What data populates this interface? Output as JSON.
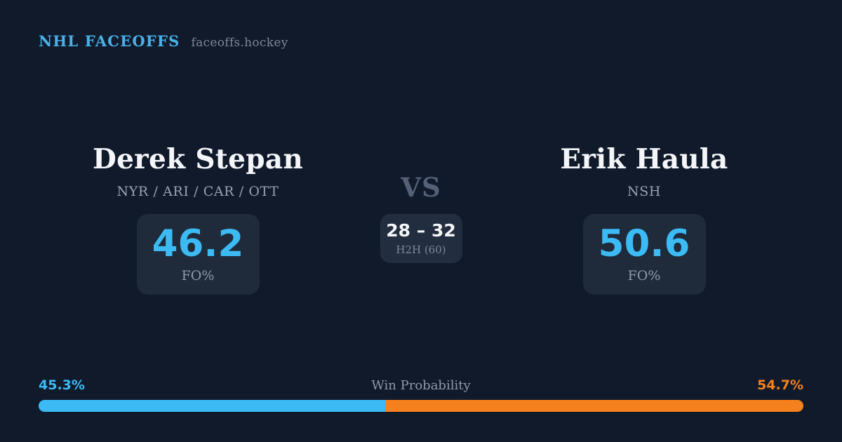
{
  "header": {
    "brand": "NHL FACEOFFS",
    "site": "faceoffs.hockey"
  },
  "players": [
    {
      "name": "Derek Stepan",
      "teams": "NYR / ARI / CAR / OTT",
      "stat_value": "46.2",
      "stat_label": "FO%"
    },
    {
      "name": "Erik Haula",
      "teams": "NSH",
      "stat_value": "50.6",
      "stat_label": "FO%"
    }
  ],
  "matchup": {
    "vs_label": "VS",
    "h2h_score": "28 – 32",
    "h2h_label": "H2H (60)"
  },
  "win_probability": {
    "title": "Win Probability",
    "left_label": "45.3%",
    "right_label": "54.7%",
    "left_value": 45.3,
    "right_value": 54.7
  },
  "colors": {
    "background": "#111a2b",
    "card": "#1f2a3a",
    "card-center": "#222e3f",
    "brand-blue": "#49b1e9",
    "accent-blue": "#3cbaf4",
    "accent-orange": "#f5811e",
    "text-white": "#f3f5f8",
    "text-slate": "#97a2b5",
    "text-muted": "#8e99ab",
    "vs-slate": "#536077"
  }
}
